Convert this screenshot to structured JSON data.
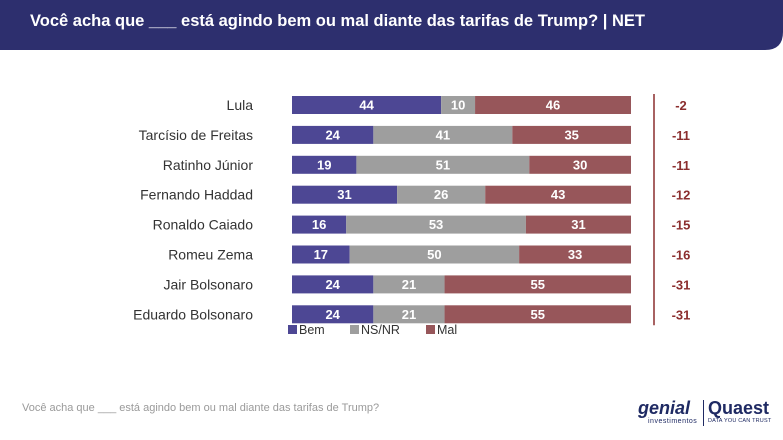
{
  "title": "Você acha que ___ está agindo bem ou mal diante das tarifas de Trump? | NET",
  "footnote": "Você acha que ___ está agindo bem ou mal diante das tarifas de Trump?",
  "logos": {
    "genial": "genial",
    "genial_sub": "investimentos",
    "quaest": "Quaest",
    "quaest_sub": "DATA YOU CAN TRUST"
  },
  "colors": {
    "header": "#2d2f6e",
    "bem": "#4d4794",
    "nsnr": "#9e9e9e",
    "mal": "#97565a",
    "net": "#8b2e2e"
  },
  "chart_data": {
    "type": "bar",
    "orientation": "horizontal",
    "stacked": true,
    "title": "Você acha que ___ está agindo bem ou mal diante das tarifas de Trump? | NET",
    "categories": [
      "Lula",
      "Tarcísio de Freitas",
      "Ratinho Júnior",
      "Fernando Haddad",
      "Ronaldo Caiado",
      "Romeu Zema",
      "Jair Bolsonaro",
      "Eduardo Bolsonaro"
    ],
    "series": [
      {
        "name": "Bem",
        "color": "#4d4794",
        "values": [
          44,
          24,
          19,
          31,
          16,
          17,
          24,
          24
        ]
      },
      {
        "name": "NS/NR",
        "color": "#9e9e9e",
        "values": [
          10,
          41,
          51,
          26,
          53,
          50,
          21,
          21
        ]
      },
      {
        "name": "Mal",
        "color": "#97565a",
        "values": [
          46,
          35,
          30,
          43,
          31,
          33,
          55,
          55
        ]
      }
    ],
    "net_labels": [
      "-2",
      "-11",
      "-11",
      "-12",
      "-15",
      "-16",
      "-31",
      "-31"
    ],
    "xlim": [
      0,
      100
    ],
    "legend": [
      "Bem",
      "NS/NR",
      "Mal"
    ],
    "legend_position": "bottom-left"
  }
}
